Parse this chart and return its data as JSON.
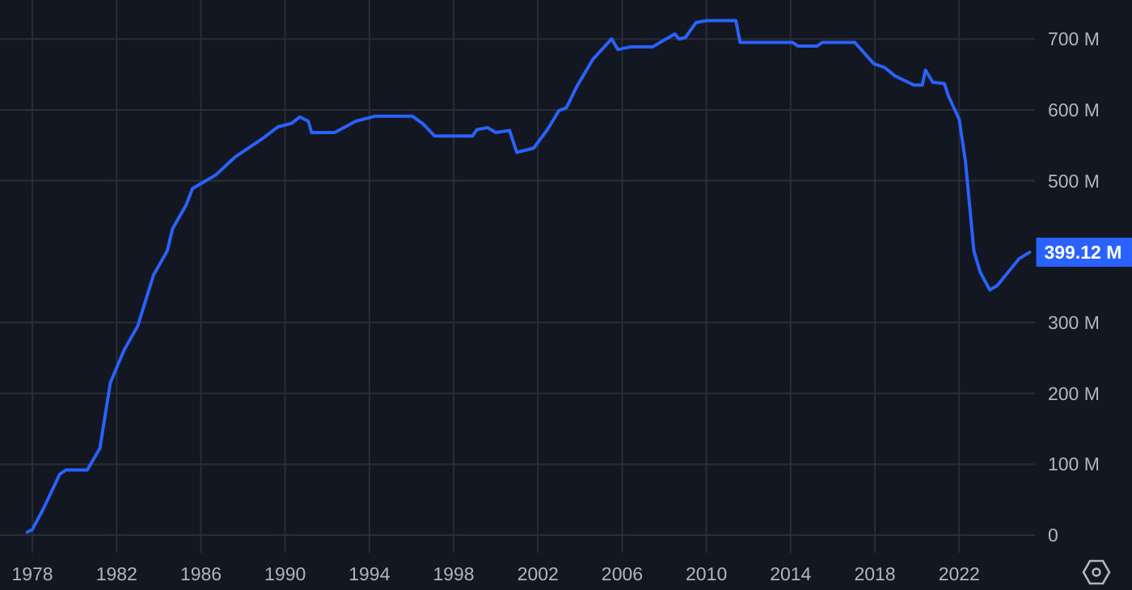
{
  "chart_data": {
    "type": "line",
    "x": [
      1977.75,
      1978.0,
      1978.5,
      1979.3,
      1979.6,
      1980.6,
      1981.2,
      1981.7,
      1982.35,
      1983.0,
      1983.75,
      1984.4,
      1984.65,
      1985.3,
      1985.6,
      1986.7,
      1987.6,
      1989.0,
      1989.65,
      1990.3,
      1990.7,
      1991.1,
      1991.25,
      1992.35,
      1993.35,
      1994.25,
      1996.05,
      1996.55,
      1997.1,
      1998.9,
      1999.1,
      1999.6,
      2000.0,
      2000.65,
      2001.0,
      2001.8,
      2002.45,
      2003.0,
      2003.35,
      2003.85,
      2004.6,
      2005.5,
      2005.8,
      2006.4,
      2007.45,
      2008.5,
      2008.7,
      2009.0,
      2009.5,
      2010.0,
      2011.4,
      2011.6,
      2012.55,
      2014.1,
      2014.35,
      2015.25,
      2015.5,
      2017.05,
      2017.95,
      2018.45,
      2018.95,
      2019.85,
      2020.25,
      2020.4,
      2020.75,
      2021.3,
      2021.5,
      2022.0,
      2022.3,
      2022.7,
      2023.0,
      2023.45,
      2023.8,
      2024.85,
      2025.35
    ],
    "series": [
      {
        "color": "#2962ff",
        "values": [
          4,
          8,
          36,
          86,
          92,
          92,
          122,
          215,
          261,
          295,
          367,
          401,
          432,
          466,
          489,
          508,
          533,
          561,
          576,
          581,
          590,
          584,
          568,
          568,
          584,
          591,
          591,
          580,
          563,
          563,
          572,
          575,
          568,
          571,
          540,
          546,
          572,
          599,
          603,
          633,
          671,
          700,
          685,
          689,
          689,
          707,
          700,
          702,
          723,
          726,
          726,
          695,
          695,
          695,
          690,
          690,
          695,
          695,
          665,
          660,
          648,
          635,
          635,
          656,
          639,
          637,
          619,
          587,
          527,
          401,
          371,
          346,
          352,
          390,
          399.12
        ]
      }
    ],
    "xlim": [
      1976.46,
      2025.6
    ],
    "xticks": [
      1978,
      1982,
      1986,
      1990,
      1994,
      1998,
      2002,
      2006,
      2010,
      2014,
      2018,
      2022
    ],
    "ylim": [
      -25,
      755
    ],
    "yticks": [
      0,
      {
        "value": 100,
        "label": "100 M"
      },
      {
        "value": 200,
        "label": "200 M"
      },
      {
        "value": 300,
        "label": "300 M"
      },
      {
        "value": 500,
        "label": "500 M"
      },
      {
        "value": 600,
        "label": "600 M"
      },
      {
        "value": 700,
        "label": "700 M"
      }
    ],
    "grid": true,
    "line_style": "solid",
    "marker": "none",
    "annotations": [
      {
        "text": "399.12 M",
        "x": 2025.35,
        "y": 399.12
      }
    ]
  }
}
